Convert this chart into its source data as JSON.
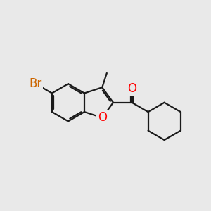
{
  "bg_color": "#e9e9e9",
  "bond_color": "#1a1a1a",
  "bond_width": 1.6,
  "atom_colors": {
    "O": "#ff0000",
    "Br": "#cc6600",
    "C": "#1a1a1a"
  },
  "font_size_atoms": 12,
  "bg_hex": "#e9e9e9"
}
